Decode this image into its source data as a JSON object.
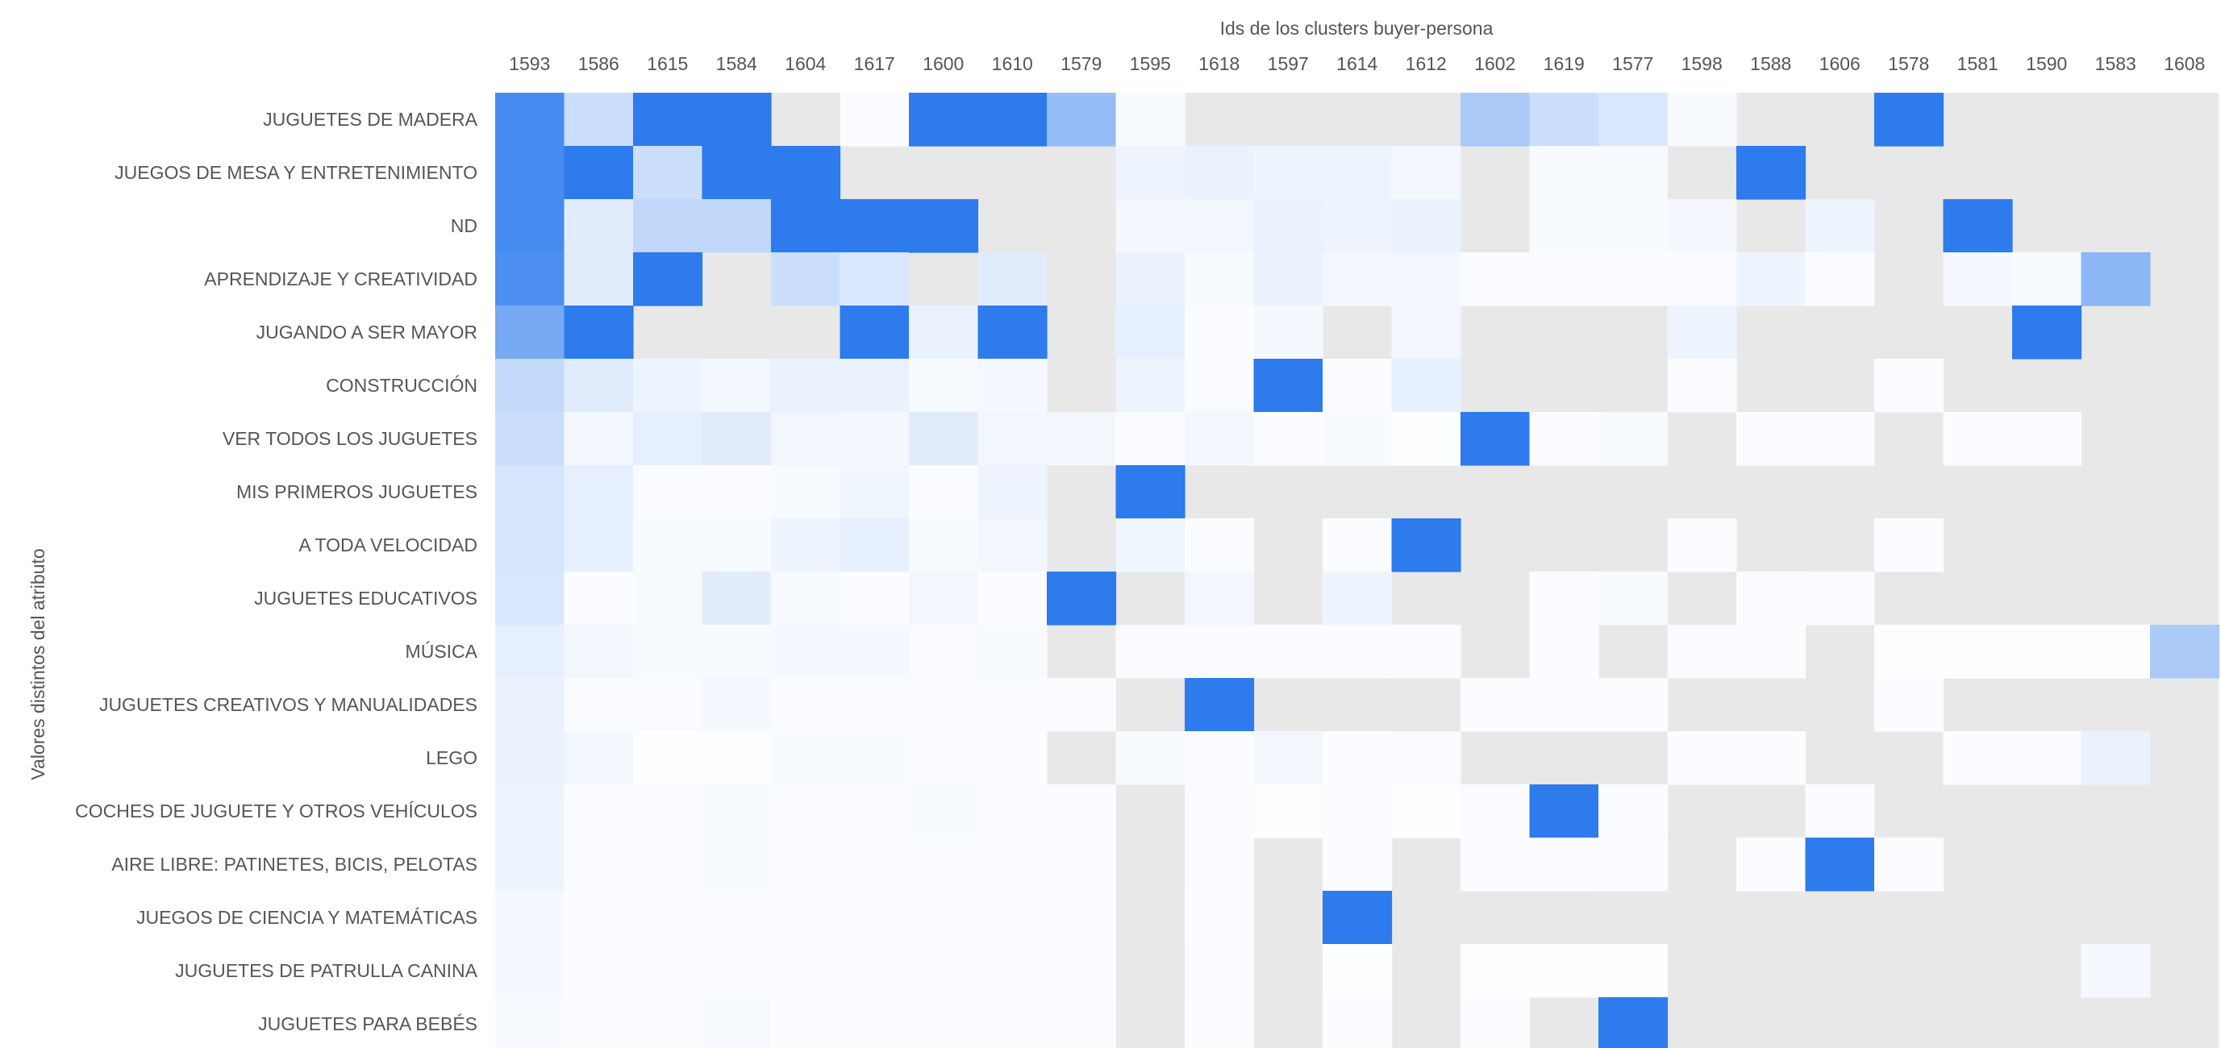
{
  "chart_data": {
    "type": "heatmap",
    "xlabel": "Ids de los clusters buyer-persona",
    "ylabel": "Valores distintos del atributo",
    "x": [
      "1593",
      "1586",
      "1615",
      "1584",
      "1604",
      "1617",
      "1600",
      "1610",
      "1579",
      "1595",
      "1618",
      "1597",
      "1614",
      "1612",
      "1602",
      "1619",
      "1577",
      "1598",
      "1588",
      "1606",
      "1578",
      "1581",
      "1590",
      "1583",
      "1608"
    ],
    "y": [
      "JUGUETES DE MADERA",
      "JUEGOS DE MESA Y ENTRETENIMIENTO",
      "ND",
      "APRENDIZAJE Y CREATIVIDAD",
      "JUGANDO A SER MAYOR",
      "CONSTRUCCIÓN",
      "VER TODOS LOS JUGUETES",
      "MIS PRIMEROS JUGUETES",
      "A TODA VELOCIDAD",
      "JUGUETES EDUCATIVOS",
      "MÚSICA",
      "JUGUETES CREATIVOS Y MANUALIDADES",
      "LEGO",
      "COCHES DE JUGUETE Y OTROS VEHÍCULOS",
      "AIRE LIBRE: PATINETES, BICIS, PELOTAS",
      "JUEGOS DE CIENCIA Y MATEMÁTICAS",
      "JUGUETES DE PATRULLA CANINA",
      "JUGUETES PARA BEBÉS"
    ],
    "value_range": [
      0,
      1
    ],
    "missing_color": "#e8e8e8",
    "color_scale": [
      "#ffffff",
      "#2d7bed"
    ],
    "z": [
      [
        0.88,
        0.25,
        1,
        1,
        null,
        0.02,
        1,
        1,
        0.5,
        0.04,
        null,
        null,
        null,
        null,
        0.4,
        0.25,
        0.18,
        0.04,
        null,
        null,
        1,
        null,
        null,
        null,
        null
      ],
      [
        0.88,
        1,
        0.25,
        1,
        1,
        null,
        null,
        null,
        null,
        0.08,
        0.1,
        0.08,
        0.08,
        0.06,
        null,
        0.04,
        0.04,
        null,
        1,
        null,
        null,
        null,
        null,
        null,
        null
      ],
      [
        0.88,
        0.15,
        0.3,
        0.3,
        1,
        1,
        1,
        null,
        null,
        0.05,
        0.06,
        0.1,
        0.08,
        0.1,
        null,
        0.04,
        0.04,
        0.05,
        null,
        0.08,
        null,
        1,
        null,
        null,
        null
      ],
      [
        0.85,
        0.15,
        1,
        null,
        0.25,
        0.18,
        null,
        0.15,
        null,
        0.1,
        0.04,
        0.1,
        0.06,
        0.06,
        0.02,
        0.02,
        0.02,
        0.03,
        0.08,
        0.03,
        null,
        0.05,
        0.04,
        0.55,
        null
      ],
      [
        0.65,
        1,
        null,
        null,
        null,
        1,
        0.1,
        1,
        null,
        0.12,
        0.02,
        0.05,
        null,
        0.06,
        null,
        null,
        null,
        0.08,
        null,
        null,
        null,
        null,
        1,
        null,
        null
      ],
      [
        0.28,
        0.15,
        0.08,
        0.06,
        0.1,
        0.1,
        0.04,
        0.05,
        null,
        0.08,
        0.02,
        1,
        0.02,
        0.12,
        null,
        null,
        null,
        0.02,
        null,
        null,
        0.02,
        null,
        null,
        null,
        null
      ],
      [
        0.25,
        0.06,
        0.12,
        0.15,
        0.06,
        0.05,
        0.15,
        0.06,
        0.06,
        0.02,
        0.06,
        0.02,
        0.04,
        0.01,
        1,
        0.02,
        0.04,
        null,
        0.02,
        0.02,
        null,
        0.02,
        0.02,
        null,
        null
      ],
      [
        0.2,
        0.12,
        0.03,
        0.03,
        0.04,
        0.07,
        0.02,
        0.08,
        null,
        1,
        null,
        null,
        null,
        null,
        null,
        null,
        null,
        null,
        null,
        null,
        null,
        null,
        null,
        null,
        null
      ],
      [
        0.2,
        0.12,
        0.04,
        0.04,
        0.08,
        0.12,
        0.04,
        0.06,
        null,
        0.07,
        0.02,
        null,
        0.02,
        1,
        null,
        null,
        null,
        0.03,
        null,
        null,
        0.02,
        null,
        null,
        null,
        null
      ],
      [
        0.18,
        0.02,
        0.04,
        0.14,
        0.04,
        0.02,
        0.06,
        0.02,
        1,
        null,
        0.06,
        null,
        0.08,
        null,
        null,
        0.02,
        0.04,
        null,
        0.02,
        0.03,
        null,
        null,
        null,
        null,
        null
      ],
      [
        0.12,
        0.06,
        0.04,
        0.04,
        0.05,
        0.05,
        0.03,
        0.04,
        null,
        0.03,
        0.02,
        0.02,
        0.02,
        0.02,
        null,
        0.02,
        null,
        0.03,
        0.02,
        null,
        0.01,
        0.01,
        0.01,
        0.01,
        0.4
      ],
      [
        0.1,
        0.02,
        0.03,
        0.05,
        0.03,
        0.03,
        0.03,
        0.02,
        0.03,
        null,
        1,
        null,
        null,
        null,
        0.02,
        0.02,
        0.02,
        null,
        null,
        null,
        0.02,
        null,
        null,
        null,
        null
      ],
      [
        0.1,
        0.06,
        0.01,
        0.01,
        0.04,
        0.04,
        0.02,
        0.02,
        null,
        0.04,
        0.02,
        0.06,
        0.02,
        0.03,
        null,
        null,
        null,
        0.02,
        0.02,
        null,
        null,
        0.02,
        0.02,
        0.1,
        null
      ],
      [
        0.08,
        0.02,
        0.03,
        0.04,
        0.03,
        0.03,
        0.04,
        0.02,
        0.02,
        null,
        0.03,
        0.01,
        0.03,
        0.01,
        0.02,
        1,
        0.02,
        null,
        null,
        0.02,
        null,
        null,
        null,
        null,
        null
      ],
      [
        0.08,
        0.02,
        0.03,
        0.04,
        0.03,
        0.02,
        0.03,
        0.02,
        0.02,
        null,
        0.03,
        null,
        0.02,
        null,
        0.02,
        0.02,
        0.03,
        null,
        0.02,
        1,
        0.02,
        null,
        null,
        null,
        null
      ],
      [
        0.05,
        0.02,
        0.02,
        0.03,
        0.03,
        0.02,
        0.02,
        0.02,
        0.02,
        null,
        0.02,
        null,
        1,
        null,
        null,
        null,
        null,
        null,
        null,
        null,
        null,
        null,
        null,
        null,
        null
      ],
      [
        0.05,
        0.02,
        0.02,
        0.02,
        0.02,
        0.02,
        0.02,
        0.02,
        0.02,
        null,
        0.03,
        null,
        0.01,
        null,
        0.01,
        0.01,
        0.01,
        null,
        null,
        null,
        null,
        null,
        null,
        0.05,
        null
      ],
      [
        0.04,
        0.02,
        0.02,
        0.04,
        0.02,
        0.02,
        0.02,
        0.02,
        0.03,
        null,
        0.02,
        null,
        0.02,
        null,
        0.02,
        null,
        1,
        null,
        null,
        null,
        null,
        null,
        null,
        null,
        null
      ]
    ]
  }
}
